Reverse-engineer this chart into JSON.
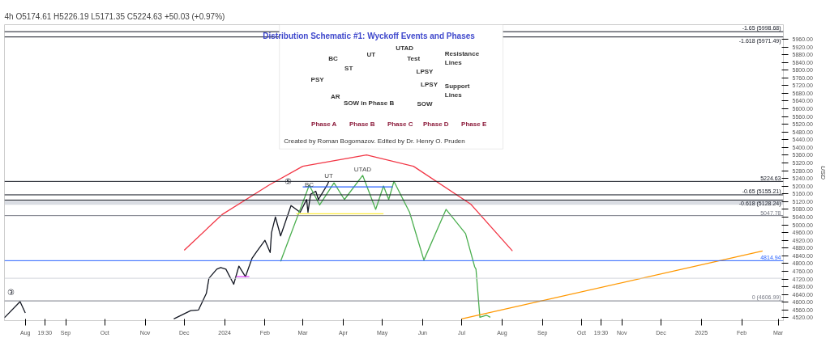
{
  "chart_data": {
    "type": "line",
    "title": "4h  O5174.61 H5226.19 L5171.35 C5224.63 +50.03 (+0.97%)",
    "ylabel": "USD",
    "xlim": [
      "2023-07-16",
      "2025-03-05"
    ],
    "ylim": [
      4505,
      6035
    ],
    "xticks": [
      {
        "value": "2023-08-01",
        "label": "Aug"
      },
      {
        "value": "2023-08-16",
        "label": "19:30"
      },
      {
        "value": "2023-09-01",
        "label": "Sep"
      },
      {
        "value": "2023-10-01",
        "label": "Oct"
      },
      {
        "value": "2023-11-01",
        "label": "Nov"
      },
      {
        "value": "2023-12-01",
        "label": "Dec"
      },
      {
        "value": "2024-01-01",
        "label": "2024"
      },
      {
        "value": "2024-02-01",
        "label": "Feb"
      },
      {
        "value": "2024-03-01",
        "label": "Mar"
      },
      {
        "value": "2024-04-01",
        "label": "Apr"
      },
      {
        "value": "2024-05-01",
        "label": "May"
      },
      {
        "value": "2024-06-01",
        "label": "Jun"
      },
      {
        "value": "2024-07-01",
        "label": "Jul"
      },
      {
        "value": "2024-08-01",
        "label": "Aug"
      },
      {
        "value": "2024-09-01",
        "label": "Sep"
      },
      {
        "value": "2024-10-01",
        "label": "Oct"
      },
      {
        "value": "2024-10-16",
        "label": "19:30"
      },
      {
        "value": "2024-11-01",
        "label": "Nov"
      },
      {
        "value": "2024-12-01",
        "label": "Dec"
      },
      {
        "value": "2025-01-01",
        "label": "2025"
      },
      {
        "value": "2025-02-01",
        "label": "Feb"
      },
      {
        "value": "2025-03-01",
        "label": "Mar"
      }
    ],
    "yticks": [
      {
        "value": 4520,
        "label": "4520.00"
      },
      {
        "value": 4560,
        "label": "4560.00"
      },
      {
        "value": 4600,
        "label": "4600.00"
      },
      {
        "value": 4640,
        "label": "4640.00"
      },
      {
        "value": 4680,
        "label": "4680.00"
      },
      {
        "value": 4720,
        "label": "4720.00"
      },
      {
        "value": 4760,
        "label": "4760.00"
      },
      {
        "value": 4800,
        "label": "4800.00"
      },
      {
        "value": 4840,
        "label": "4840.00"
      },
      {
        "value": 4880,
        "label": "4880.00"
      },
      {
        "value": 4920,
        "label": "4920.00"
      },
      {
        "value": 4960,
        "label": "4960.00"
      },
      {
        "value": 5000,
        "label": "5000.00"
      },
      {
        "value": 5040,
        "label": "5040.00"
      },
      {
        "value": 5080,
        "label": "5080.00"
      },
      {
        "value": 5120,
        "label": "5120.00"
      },
      {
        "value": 5160,
        "label": "5160.00"
      },
      {
        "value": 5200,
        "label": "5200.00"
      },
      {
        "value": 5240,
        "label": "5240.00"
      },
      {
        "value": 5280,
        "label": "5280.00"
      },
      {
        "value": 5320,
        "label": "5320.00"
      },
      {
        "value": 5360,
        "label": "5360.00"
      },
      {
        "value": 5400,
        "label": "5400.00"
      },
      {
        "value": 5440,
        "label": "5440.00"
      },
      {
        "value": 5480,
        "label": "5480.00"
      },
      {
        "value": 5520,
        "label": "5520.00"
      },
      {
        "value": 5560,
        "label": "5560.00"
      },
      {
        "value": 5600,
        "label": "5600.00"
      },
      {
        "value": 5640,
        "label": "5640.00"
      },
      {
        "value": 5680,
        "label": "5680.00"
      },
      {
        "value": 5720,
        "label": "5720.00"
      },
      {
        "value": 5760,
        "label": "5760.00"
      },
      {
        "value": 5800,
        "label": "5800.00"
      },
      {
        "value": 5840,
        "label": "5840.00"
      },
      {
        "value": 5880,
        "label": "5880.00"
      },
      {
        "value": 5920,
        "label": "5920.00"
      },
      {
        "value": 5960,
        "label": "5960.00"
      }
    ],
    "series": [
      {
        "color": "#131722",
        "x": [
          "2023-07-16",
          "2023-07-28",
          "2023-08-01",
          "2023-08-10",
          "2023-11-23",
          "2023-12-06",
          "2023-12-12",
          "2023-12-18",
          "2023-12-20",
          "2023-12-26",
          "2023-12-29",
          "2024-01-02",
          "2024-01-08",
          "2024-01-12",
          "2024-01-17",
          "2024-01-22",
          "2024-01-26",
          "2024-02-01",
          "2024-02-05",
          "2024-02-06",
          "2024-02-09",
          "2024-02-13",
          "2024-02-21",
          "2024-02-28",
          "2024-03-04",
          "2024-03-05",
          "2024-03-07",
          "2024-03-11",
          "2024-03-13",
          "2024-03-20",
          "2024-03-21"
        ],
        "values": [
          4520,
          4603,
          4545,
          null,
          4514,
          4557,
          4560,
          4646,
          4724,
          4771,
          4779,
          4771,
          4693,
          4787,
          4732,
          4826,
          4865,
          4920,
          4857,
          4959,
          5041,
          4943,
          5100,
          5065,
          5131,
          5065,
          5158,
          5174,
          5131,
          5209,
          5224.63
        ]
      },
      {
        "color": "#4caf50",
        "x": [
          "2024-02-13",
          "2024-03-06",
          "2024-03-14",
          "2024-03-25",
          "2024-04-02",
          "2024-04-16",
          "2024-04-26",
          "2024-05-02",
          "2024-05-06",
          "2024-05-10",
          "2024-05-22",
          "2024-06-02",
          "2024-06-19",
          "2024-07-04",
          "2024-07-11",
          "2024-07-12",
          "2024-07-15",
          "2024-07-20",
          "2024-07-23"
        ],
        "values": [
          4811,
          5205,
          5103,
          5217,
          5131,
          5256,
          5080,
          5201,
          5131,
          5225,
          5065,
          4818,
          5080,
          4955,
          4783,
          4771,
          4522,
          4533,
          4522
        ]
      },
      {
        "color": "#f23645",
        "x": [
          "2023-12-01",
          "2023-12-30",
          "2024-02-04",
          "2024-03-01",
          "2024-04-19",
          "2024-05-25",
          "2024-07-08",
          "2024-08-09"
        ],
        "values": [
          4869,
          5053,
          5205,
          5303,
          5361,
          5303,
          5107,
          4865
        ]
      },
      {
        "color": "#ff9800",
        "x": [
          "2024-07-01",
          "2025-02-17"
        ],
        "values": [
          4514,
          4865
        ]
      },
      {
        "color": "#2962ff",
        "x": [
          "2024-03-01",
          "2024-05-09"
        ],
        "values": [
          5196,
          5196
        ]
      },
      {
        "color": "#ffeb3b",
        "x": [
          "2024-02-25",
          "2024-05-02"
        ],
        "values": [
          5057,
          5057
        ]
      },
      {
        "color": "#e040fb",
        "x": [
          "2024-01-10",
          "2024-01-20"
        ],
        "values": [
          4732,
          4732
        ]
      }
    ],
    "ref_lines": [
      {
        "axis": "y",
        "value": 5998.68,
        "label": "-1.65 (5998.68)",
        "color": "#131722"
      },
      {
        "axis": "y",
        "value": 5971.49,
        "label": "-1.618 (5971.49)",
        "color": "#131722"
      },
      {
        "axis": "y",
        "value": 5224.63,
        "label": "5224.63",
        "color": "#131722"
      },
      {
        "axis": "y",
        "value": 5155.21,
        "label": "-0.65 (5155.21)",
        "color": "#131722"
      },
      {
        "axis": "y",
        "value": 5128.24,
        "label": "-0.618 (5128.24)",
        "color": "#131722"
      },
      {
        "axis": "y",
        "value": 5047.78,
        "label": "5047.78",
        "color": "#787b86"
      },
      {
        "axis": "y",
        "value": 4814.94,
        "label": "4814.94",
        "color": "#2962ff"
      },
      {
        "axis": "y",
        "value": 4724,
        "label": null,
        "color": "#d1d4dc"
      },
      {
        "axis": "y",
        "value": 4606.99,
        "label": "0 (4606.99)",
        "color": "#787b86"
      }
    ],
    "bands": [
      {
        "axis": "y",
        "from": 5104,
        "to": 5125,
        "label": null,
        "color": "#d1d4dc"
      }
    ],
    "annotations": [
      {
        "text": "UT",
        "x": "2024-03-21",
        "y": 5226
      },
      {
        "text": "UTAD",
        "x": "2024-04-16",
        "y": 5260
      },
      {
        "text": "BC",
        "x": "2024-03-06",
        "y": 5181
      },
      "⑤",
      "③",
      "Distribution Schematic #1: Wyckoff Events and Phases",
      "PSY",
      "BC",
      "AR",
      "ST",
      "SOW in Phase B",
      "UT",
      "UTAD",
      "Test",
      "Resistance Lines",
      "LPSY",
      "LPSY",
      "Support Lines",
      "SOW",
      "Phase A",
      "Phase B",
      "Phase C",
      "Phase D",
      "Phase E",
      "Created by Roman Bogomazov. Edited by Dr. Henry O. Pruden"
    ],
    "grid": false,
    "line_style": "solid",
    "marker": "none"
  }
}
